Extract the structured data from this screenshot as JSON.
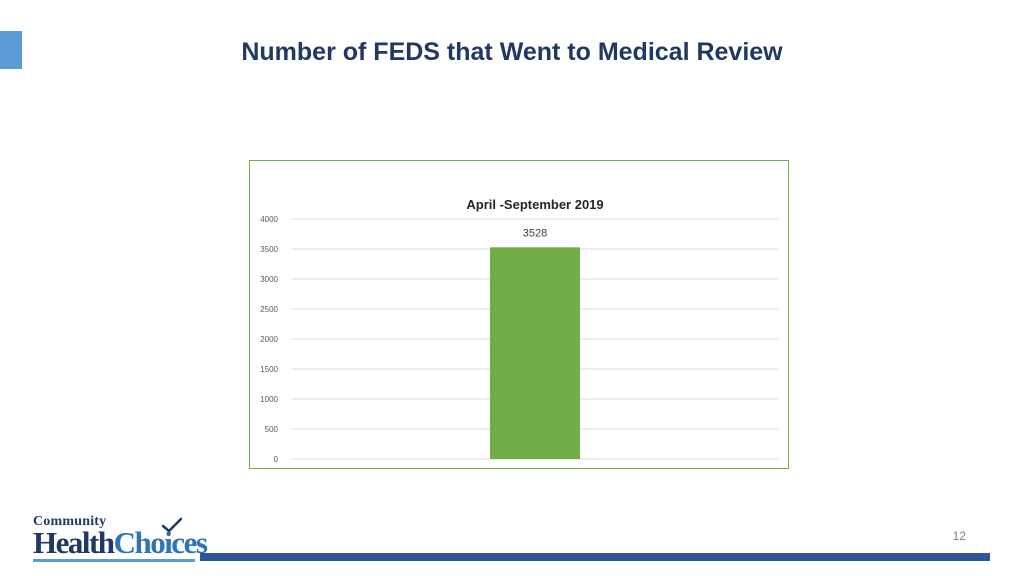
{
  "slide": {
    "title": "Number of FEDS that Went to Medical Review",
    "page_number": "12",
    "accent_color": "#5b9bd5",
    "title_color": "#1f3864",
    "footer_bar_color": "#2f5597"
  },
  "logo": {
    "line1": "Community",
    "line2_part1": "Health",
    "line2_part2": "Choices",
    "icon": "checkmark-icon"
  },
  "chart_data": {
    "type": "bar",
    "title": "April -September 2019",
    "categories": [
      ""
    ],
    "values": [
      3528
    ],
    "data_labels": [
      "3528"
    ],
    "ylim": [
      0,
      4000
    ],
    "yticks": [
      0,
      500,
      1000,
      1500,
      2000,
      2500,
      3000,
      3500,
      4000
    ],
    "grid": true,
    "bar_color": "#70ad47",
    "frame_color": "#70ad47",
    "legend": "none"
  }
}
